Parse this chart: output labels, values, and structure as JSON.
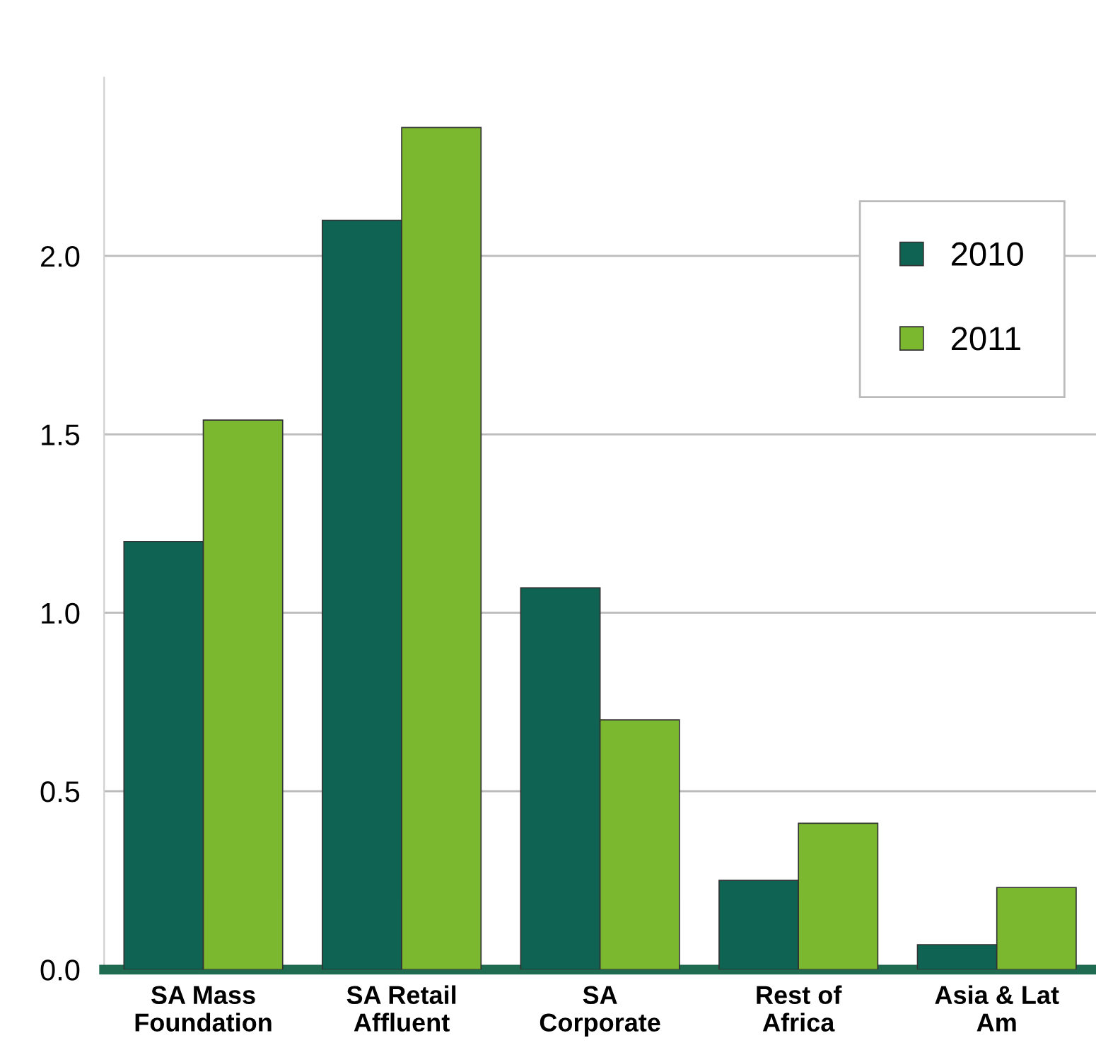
{
  "chart_data": {
    "type": "bar",
    "categories": [
      "SA Mass\nFoundation",
      "SA Retail\nAffluent",
      "SA\nCorporate",
      "Rest of\nAfrica",
      "Asia & Lat\nAm"
    ],
    "series": [
      {
        "name": "2010",
        "color": "#0f6352",
        "values": [
          1.2,
          2.1,
          1.07,
          0.25,
          0.07
        ]
      },
      {
        "name": "2011",
        "color": "#7cb82f",
        "values": [
          1.54,
          2.36,
          0.7,
          0.41,
          0.23
        ]
      }
    ],
    "ylim": [
      0,
      2.5
    ],
    "yticks": [
      {
        "value": 0,
        "label": "0.0"
      },
      {
        "value": 0.5,
        "label": "0.5"
      },
      {
        "value": 1,
        "label": "1.0"
      },
      {
        "value": 1.5,
        "label": "1.5"
      },
      {
        "value": 2,
        "label": "2.0"
      }
    ],
    "grid": "y",
    "legend": "top right"
  }
}
